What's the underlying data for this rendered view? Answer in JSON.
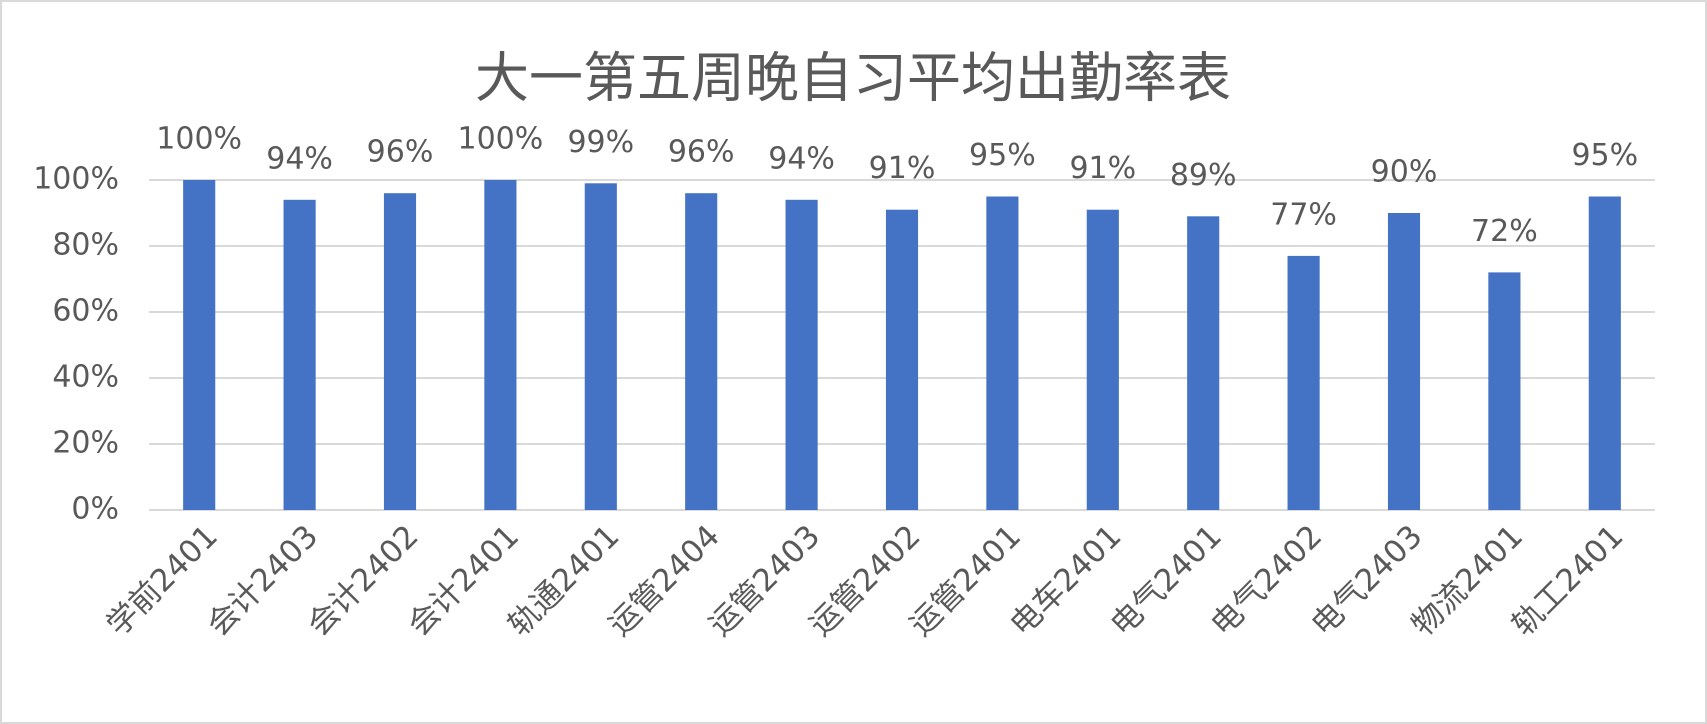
{
  "chart_data": {
    "type": "bar",
    "title": "大一第五周晚自习平均出勤率表",
    "categories": [
      "学前2401",
      "会计2403",
      "会计2402",
      "会计2401",
      "轨通2401",
      "运管2404",
      "运管2403",
      "运管2402",
      "运管2401",
      "电车2401",
      "电气2401",
      "电气2402",
      "电气2403",
      "物流2401",
      "轨工2401"
    ],
    "values": [
      100,
      94,
      96,
      100,
      99,
      96,
      94,
      91,
      95,
      91,
      89,
      77,
      90,
      72,
      95
    ],
    "value_labels": [
      "100%",
      "94%",
      "96%",
      "100%",
      "99%",
      "96%",
      "94%",
      "91%",
      "95%",
      "91%",
      "89%",
      "77%",
      "90%",
      "72%",
      "95%"
    ],
    "color": "#4472c4",
    "ylim": [
      0,
      100
    ],
    "yticks": [
      {
        "value": 0,
        "label": "0%"
      },
      {
        "value": 20,
        "label": "20%"
      },
      {
        "value": 40,
        "label": "40%"
      },
      {
        "value": 60,
        "label": "60%"
      },
      {
        "value": 80,
        "label": "80%"
      },
      {
        "value": 100,
        "label": "100%"
      }
    ],
    "grid": true
  }
}
